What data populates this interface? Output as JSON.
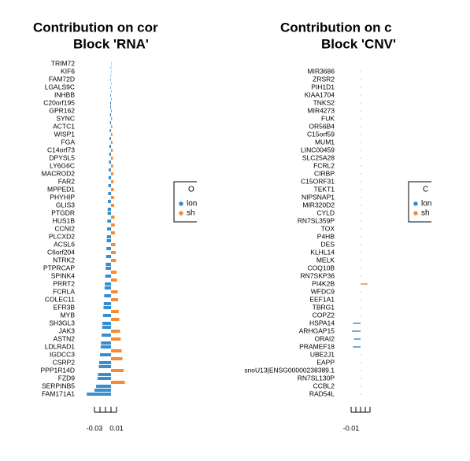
{
  "chart_data": [
    {
      "type": "bar",
      "orientation": "horizontal",
      "title": "Contribution on cor",
      "subtitle": "Block 'RNA'",
      "categories": [
        "TRIM72",
        null,
        "KIF6",
        null,
        "FAM72D",
        null,
        "LGALS9C",
        null,
        "INHBB",
        null,
        "C20orf195",
        null,
        "GPR162",
        null,
        "SYNC",
        null,
        "ACTC1",
        null,
        "WISP1",
        null,
        "FGA",
        null,
        "C14orf73",
        null,
        "DPYSL5",
        null,
        "LY6G6C",
        null,
        "MACROD2",
        null,
        "FAR2",
        null,
        "MPPED1",
        null,
        "PHYHIP",
        null,
        "GLIS3",
        null,
        "PTGDR",
        null,
        "HUS1B",
        null,
        "CCNI2",
        null,
        "PLCXD2",
        null,
        "ACSL6",
        null,
        "C6orf204",
        null,
        "NTRK2",
        null,
        "PTPRCAP",
        null,
        "SPINK4",
        null,
        "PRRT2",
        null,
        "FCRLA",
        null,
        "COLEC11",
        null,
        "EFR3B",
        null,
        "MYB",
        null,
        "SH3GL3",
        null,
        "JAK3",
        null,
        "ASTN2",
        null,
        "LDLRAD1",
        null,
        "IGDCC3",
        null,
        "CSRP2",
        null,
        "PPP1R14D",
        null,
        "FZD9",
        null,
        "SERPINB5",
        null,
        "FAM171A1"
      ],
      "values": [
        0.0003,
        -0.0004,
        0.0005,
        -0.0006,
        -0.0007,
        0.0008,
        -0.0009,
        0.001,
        -0.0011,
        0.0012,
        -0.0014,
        -0.0015,
        0.0016,
        -0.0018,
        0.0019,
        -0.002,
        0.0022,
        -0.0023,
        0.0025,
        -0.0026,
        0.0028,
        -0.003,
        0.0031,
        -0.0033,
        0.0035,
        -0.0036,
        0.0038,
        -0.004,
        0.0042,
        -0.0044,
        0.0046,
        -0.0048,
        0.005,
        -0.0052,
        0.0054,
        -0.0056,
        0.0058,
        -0.006,
        -0.0062,
        0.0064,
        -0.0066,
        0.0068,
        -0.007,
        0.0072,
        -0.0075,
        -0.0078,
        0.008,
        -0.0083,
        0.0086,
        -0.0089,
        0.0092,
        -0.0095,
        -0.0098,
        0.0101,
        -0.0105,
        0.0108,
        -0.0112,
        -0.0116,
        0.012,
        -0.0124,
        0.0128,
        -0.0132,
        -0.0136,
        0.014,
        -0.0145,
        0.015,
        -0.0155,
        -0.016,
        0.0165,
        -0.017,
        0.0176,
        -0.0182,
        -0.0188,
        0.0194,
        -0.02,
        0.0207,
        -0.0214,
        -0.0221,
        0.0228,
        -0.0236,
        -0.0244,
        0.0252,
        -0.027,
        -0.03,
        -0.044
      ],
      "colors": {
        "negative": "#388ecc",
        "positive": "#f68b33"
      },
      "xlim": [
        -0.045,
        0.04
      ],
      "xticks": [
        -0.03,
        0.01
      ],
      "xminorticks": [
        -0.02,
        -0.01,
        0
      ],
      "legend": {
        "title": "O",
        "entries": [
          {
            "name": "lon",
            "color": "#388ecc"
          },
          {
            "name": "sh",
            "color": "#f68b33"
          }
        ]
      }
    },
    {
      "type": "bar",
      "orientation": "horizontal",
      "title": "Contribution on c",
      "subtitle": "Block 'CNV'",
      "categories": [
        "MIR3686",
        "ZRSR2",
        "PIH1D1",
        "KIAA1704",
        "TNKS2",
        "MIR4273",
        "FUK",
        "OR56B4",
        "C15orf59",
        "MUM1",
        "LINC00459",
        "SLC25A28",
        "FCRL2",
        "CIRBP",
        "C15ORF31",
        "TEKT1",
        "NIPSNAP1",
        "MIR320D2",
        "CYLD",
        "RN7SL359P",
        "TOX",
        "P4HB",
        "DES",
        "KLHL14",
        "MELK",
        "COQ10B",
        "RN7SKP36",
        "PI4K2B",
        "WFDC9",
        "EEF1A1",
        "TBRG1",
        "COPZ2",
        "HSPA14",
        "ARHGAP15",
        "ORAI2",
        "PRAMEF18",
        "UBE2J1",
        "EAPP",
        "snoU13|ENSG00000238389.1",
        "RN7SL130P",
        "CCBL2",
        "RAD54L"
      ],
      "values": [
        -0.0001,
        -0.0001,
        -0.0001,
        -0.0001,
        -0.0001,
        -0.0001,
        -0.0001,
        -0.0001,
        -0.0001,
        -0.0001,
        -0.0001,
        -0.0001,
        -0.0001,
        -0.0001,
        -0.0001,
        -0.0001,
        -0.0001,
        -0.0001,
        -0.0001,
        -0.0001,
        -0.0001,
        -0.0001,
        -0.0001,
        -0.0001,
        -0.0001,
        -0.0001,
        -0.0001,
        0.0075,
        -0.0001,
        -0.0001,
        -0.0001,
        -0.0001,
        -0.008,
        -0.009,
        -0.007,
        -0.008,
        -0.0001,
        -0.0001,
        -0.0001,
        -0.0001,
        -0.0001,
        -0.0001
      ],
      "colors": {
        "negative": "#388ecc",
        "positive": "#f68b33"
      },
      "xlim": [
        -0.012,
        0.012
      ],
      "xticks": [
        -0.01
      ],
      "xminorticks": [
        -0.005,
        0,
        0.005,
        0.01
      ],
      "legend": {
        "title": "C",
        "entries": [
          {
            "name": "lon",
            "color": "#388ecc"
          },
          {
            "name": "sh",
            "color": "#f68b33"
          }
        ]
      }
    }
  ]
}
